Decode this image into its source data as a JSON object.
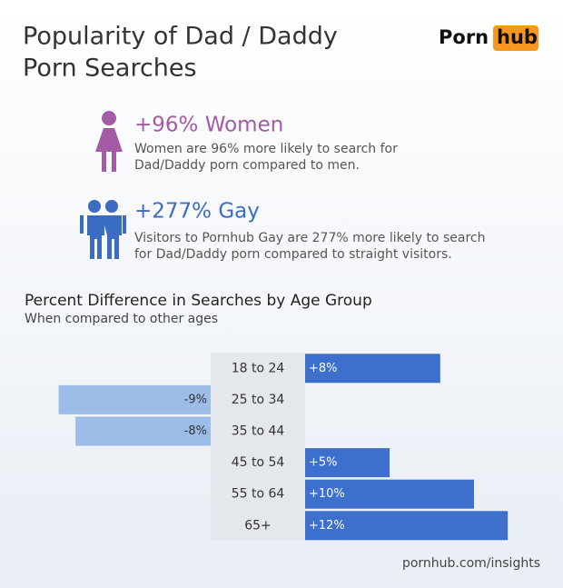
{
  "header": {
    "title": [
      "Popularity of Dad / Daddy",
      "Porn Searches"
    ],
    "logo": [
      "Porn",
      "hub"
    ]
  },
  "stats": [
    {
      "headline": "+96% Women",
      "color": "#a35ba6",
      "text": [
        "Women are 96% more likely to search for",
        "Dad/Daddy porn compared to men."
      ]
    },
    {
      "headline": "+277% Gay",
      "color": "#3b6cc3",
      "text": [
        "Visitors to Pornhub Gay are 277% more likely to search",
        "for Dad/Daddy porn compared to straight visitors."
      ]
    }
  ],
  "chart_data": {
    "type": "bar",
    "orientation": "horizontal",
    "title": "Percent Difference in Searches by Age Group",
    "subtitle": "When compared to other ages",
    "categories": [
      "18 to 24",
      "25 to 34",
      "35 to 44",
      "45 to 54",
      "55 to 64",
      "65+"
    ],
    "values": [
      8,
      -9,
      -8,
      5,
      10,
      12
    ],
    "value_labels": [
      "+8%",
      "-9%",
      "-8%",
      "+5%",
      "+10%",
      "+12%"
    ],
    "positive_color": "#3d6fcc",
    "negative_color": "#9dbde9"
  },
  "footer": "pornhub.com/insights"
}
